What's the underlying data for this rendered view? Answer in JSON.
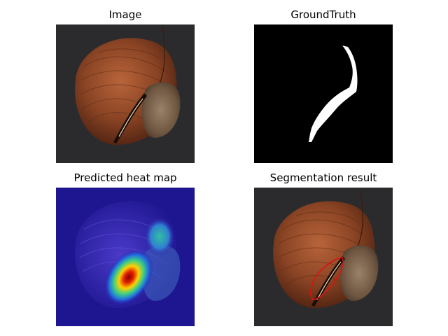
{
  "panels": [
    {
      "title": "Image",
      "content": "hazelnut-photo"
    },
    {
      "title": "GroundTruth",
      "content": "binary-mask"
    },
    {
      "title": "Predicted heat map",
      "content": "heatmap-overlay"
    },
    {
      "title": "Segmentation result",
      "content": "photo-with-contour"
    }
  ],
  "colors": {
    "background": "#ffffff",
    "photo_bg": "#2b2b2d",
    "nut_shell": "#8a4424",
    "nut_base": "#7b6551",
    "mask_bg": "#000000",
    "mask_fg": "#ffffff",
    "heat_low": "#2a1aa8",
    "heat_high": "#d10000",
    "contour": "#e01010"
  }
}
